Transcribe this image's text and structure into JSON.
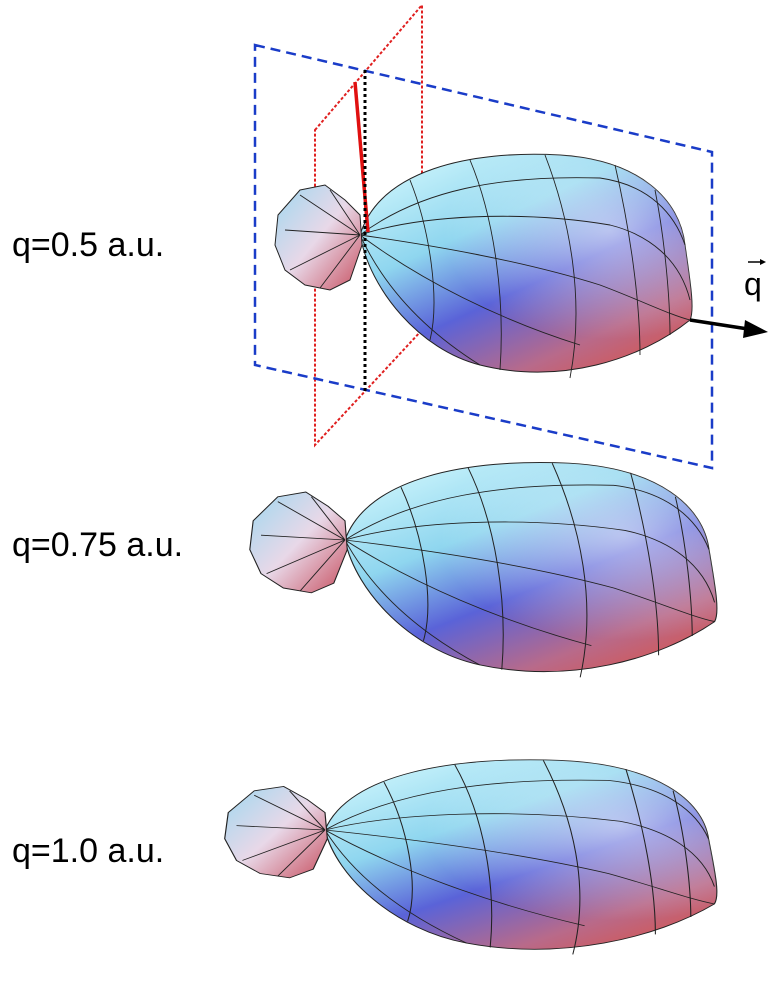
{
  "panels": [
    {
      "label": "q=0.5 a.u."
    },
    {
      "label": "q=0.75 a.u."
    },
    {
      "label": "q=1.0 a.u."
    }
  ],
  "vector_label": "q"
}
